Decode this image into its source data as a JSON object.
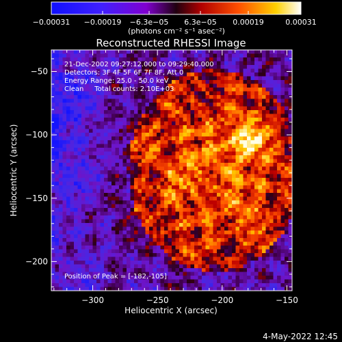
{
  "chart_data": {
    "type": "heatmap",
    "title": "Reconstructed RHESSI Image",
    "xlabel": "Heliocentric X (arcsec)",
    "ylabel": "Heliocentric Y (arcsec)",
    "xlim": [
      -332,
      -146
    ],
    "ylim": [
      -223,
      -33
    ],
    "x_ticks": [
      -300,
      -250,
      -200,
      -150
    ],
    "x_tick_labels": [
      "−300",
      "−250",
      "−200",
      "−150"
    ],
    "y_ticks": [
      -50,
      -100,
      -150,
      -200
    ],
    "y_tick_labels": [
      "−50",
      "−100",
      "−150",
      "−200"
    ],
    "colorbar": {
      "range": [
        -0.00031,
        0.00031
      ],
      "tick_labels": [
        "−0.00031",
        "−0.00019",
        "−6.3e−05",
        "6.3e−05",
        "0.00019",
        "0.00031"
      ],
      "unit_label": "(photons cm⁻² s⁻¹ asec⁻²)",
      "colors": [
        "#0000ff",
        "#8000d0",
        "#c00000",
        "#ff6000",
        "#ffd000",
        "#ffffff"
      ]
    },
    "annotations": [
      "21-Dec-2002 09:27:12.000 to 09:29:40.000",
      "Detectors: 3F 4F 5F 6F 7F 8F, Att 0",
      "Energy Range: 25.0 - 50.0 keV",
      "Clean     Total counts: 2.10E+03"
    ],
    "peak_label": "Position of Peak = [-182,-105]",
    "peak": [
      -182,
      -105
    ]
  },
  "footer": {
    "date": "4-May-2022 12:45"
  }
}
